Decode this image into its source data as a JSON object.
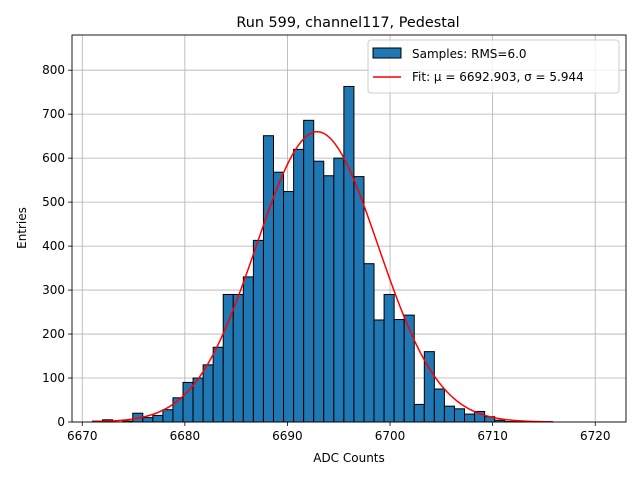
{
  "chart_data": {
    "type": "bar",
    "title": "Run 599, channel117, Pedestal",
    "xlabel": "ADC Counts",
    "ylabel": "Entries",
    "xlim": [
      6669,
      6723
    ],
    "ylim": [
      0,
      880
    ],
    "xticks": [
      6670,
      6680,
      6690,
      6700,
      6710,
      6720
    ],
    "yticks": [
      0,
      100,
      200,
      300,
      400,
      500,
      600,
      700,
      800
    ],
    "grid": true,
    "legend_position": "top-right",
    "legend": [
      "Samples: RMS=6.0",
      "Fit: μ = 6692.903, σ = 5.944"
    ],
    "bin_width": 0.98,
    "bin_start": 6671.0,
    "series": [
      {
        "name": "Samples: RMS=6.0",
        "kind": "histogram",
        "color": "#1f77b4",
        "values": [
          2,
          5,
          0,
          2,
          20,
          10,
          15,
          28,
          55,
          90,
          100,
          130,
          170,
          290,
          290,
          330,
          413,
          651,
          568,
          524,
          620,
          686,
          593,
          560,
          600,
          763,
          558,
          360,
          232,
          290,
          233,
          243,
          40,
          160,
          75,
          36,
          30,
          18,
          24,
          12,
          4,
          1,
          2,
          0,
          1
        ]
      },
      {
        "name": "Fit: μ = 6692.903, σ = 5.944",
        "kind": "gaussian-fit",
        "color": "#ff0000",
        "mu": 6692.903,
        "sigma": 5.944,
        "amplitude": 660,
        "x_range": [
          6671,
          6716
        ]
      }
    ]
  }
}
